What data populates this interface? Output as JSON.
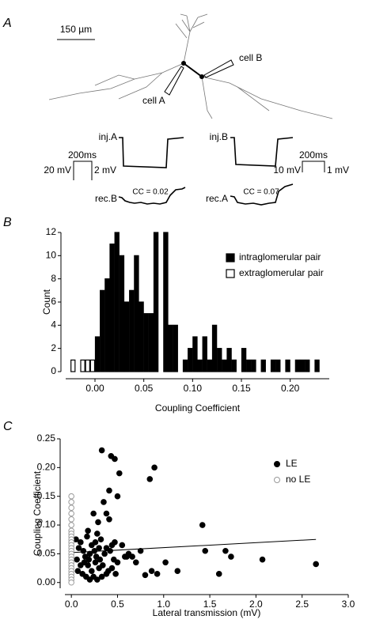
{
  "panel_a": {
    "label": "A",
    "scale_bar": "150 µm",
    "cell_a": "cell A",
    "cell_b": "cell B",
    "left": {
      "inj": "inj.A",
      "time": "200ms",
      "v_inj": "20 mV",
      "v_rec": "2 mV",
      "rec": "rec.B",
      "cc": "CC = 0.02"
    },
    "right": {
      "inj": "inj.B",
      "time": "200ms",
      "v_inj": "10 mV",
      "v_rec": "1 mV",
      "rec": "rec.A",
      "cc": "CC = 0.07"
    }
  },
  "chart_data": [
    {
      "type": "histogram",
      "panel_label": "B",
      "xlabel": "Coupling Coefficient",
      "ylabel": "Count",
      "legend": "upper right",
      "bins": [
        -0.025,
        -0.02,
        -0.015,
        -0.01,
        -0.005,
        0.0,
        0.005,
        0.01,
        0.015,
        0.02,
        0.025,
        0.03,
        0.035,
        0.04,
        0.045,
        0.05,
        0.055,
        0.06,
        0.065,
        0.07,
        0.075,
        0.08,
        0.085,
        0.09,
        0.095,
        0.1,
        0.105,
        0.11,
        0.115,
        0.12,
        0.125,
        0.13,
        0.135,
        0.14,
        0.145,
        0.15,
        0.155,
        0.16,
        0.165,
        0.17,
        0.175,
        0.18,
        0.185,
        0.19,
        0.195,
        0.2,
        0.205,
        0.21,
        0.215,
        0.22,
        0.225,
        0.23
      ],
      "series": [
        {
          "name": "intraglomerular pair",
          "color": "#000000",
          "edgecolor": "#000000",
          "values": [
            0,
            0,
            0,
            0,
            0,
            3,
            7,
            8,
            11,
            12,
            10,
            6,
            7,
            10,
            6,
            5,
            5,
            12,
            0,
            12,
            4,
            4,
            0,
            1,
            2,
            3,
            1,
            3,
            1,
            4,
            2,
            1,
            2,
            1,
            0,
            2,
            1,
            1,
            0,
            1,
            0,
            1,
            1,
            0,
            1,
            0,
            1,
            1,
            1,
            0,
            1
          ]
        },
        {
          "name": "extraglomerular pair",
          "color": "#ffffff",
          "edgecolor": "#000000",
          "values": [
            1,
            0,
            1,
            1,
            1,
            0,
            0,
            0,
            0,
            0,
            0,
            0,
            0,
            0,
            0,
            0,
            0,
            0,
            0,
            0,
            0,
            0,
            0,
            0,
            0,
            0,
            0,
            0,
            0,
            0,
            0,
            0,
            0,
            0,
            0,
            0,
            0,
            0,
            0,
            0,
            0,
            0,
            0,
            0,
            0,
            0,
            0,
            0,
            0,
            0,
            0
          ]
        }
      ],
      "xlim": [
        -0.03,
        0.24
      ],
      "ylim": [
        0,
        12
      ],
      "xticks": [
        {
          "value": 0,
          "label": "0.00"
        },
        {
          "value": 0.05,
          "label": "0.05"
        },
        {
          "value": 0.1,
          "label": "0.10"
        },
        {
          "value": 0.15,
          "label": "0.15"
        },
        {
          "value": 0.2,
          "label": "0.20"
        }
      ],
      "yticks": [
        0,
        2,
        4,
        6,
        8,
        10,
        12
      ]
    },
    {
      "type": "scatter",
      "panel_label": "C",
      "xlabel": "Lateral transmission (mV)",
      "ylabel": "Coupling Coefficient",
      "legend": "upper right",
      "series": [
        {
          "name": "LE",
          "color": "#000000",
          "marker": "filled",
          "x": [
            0.33,
            0.43,
            0.47,
            0.52,
            0.9,
            0.85,
            0.41,
            0.5,
            0.35,
            0.24,
            0.38,
            0.29,
            0.41,
            0.18,
            0.28,
            1.42,
            0.05,
            0.1,
            0.17,
            0.22,
            0.26,
            0.32,
            0.38,
            0.44,
            0.47,
            0.55,
            0.58,
            0.62,
            0.66,
            0.08,
            0.13,
            0.2,
            0.25,
            0.3,
            0.36,
            0.42,
            0.46,
            0.5,
            0.7,
            0.75,
            0.8,
            0.87,
            0.93,
            1.02,
            1.15,
            1.45,
            1.6,
            1.67,
            1.73,
            2.07,
            2.65,
            0.06,
            0.1,
            0.14,
            0.18,
            0.22,
            0.26,
            0.3,
            0.34,
            0.4,
            0.12,
            0.16,
            0.2,
            0.24,
            0.28,
            0.33,
            0.38,
            0.07,
            0.15,
            0.19,
            0.27,
            0.31,
            0.44,
            0.48,
            0.6
          ],
          "values": [
            0.23,
            0.22,
            0.215,
            0.19,
            0.2,
            0.18,
            0.16,
            0.15,
            0.14,
            0.12,
            0.12,
            0.105,
            0.11,
            0.09,
            0.085,
            0.1,
            0.075,
            0.07,
            0.08,
            0.065,
            0.07,
            0.075,
            0.06,
            0.065,
            0.07,
            0.065,
            0.045,
            0.05,
            0.045,
            0.06,
            0.055,
            0.05,
            0.055,
            0.06,
            0.05,
            0.055,
            0.04,
            0.035,
            0.035,
            0.055,
            0.013,
            0.02,
            0.015,
            0.035,
            0.02,
            0.055,
            0.015,
            0.055,
            0.045,
            0.04,
            0.032,
            0.04,
            0.03,
            0.035,
            0.03,
            0.02,
            0.035,
            0.025,
            0.03,
            0.02,
            0.015,
            0.01,
            0.005,
            0.01,
            0.005,
            0.01,
            0.015,
            0.02,
            0.045,
            0.04,
            0.045,
            0.04,
            0.025,
            0.015,
            0.045
          ]
        },
        {
          "name": "no LE",
          "color": "#999999",
          "marker": "open",
          "x": [
            0,
            0,
            0,
            0,
            0,
            0,
            0,
            0,
            0,
            0,
            0,
            0,
            0,
            0,
            0,
            0,
            0,
            0,
            0,
            0,
            0,
            0,
            0,
            0,
            0
          ],
          "values": [
            0.15,
            0.14,
            0.13,
            0.12,
            0.11,
            0.1,
            0.09,
            0.085,
            0.08,
            0.075,
            0.07,
            0.065,
            0.06,
            0.055,
            0.05,
            0.045,
            0.04,
            0.035,
            0.03,
            0.025,
            0.02,
            0.015,
            0.01,
            0.005,
            0
          ]
        }
      ],
      "fit": {
        "color": "#000000",
        "x": [
          0,
          2.65
        ],
        "y": [
          0.052,
          0.075
        ]
      },
      "xlim": [
        -0.07,
        3.0
      ],
      "ylim": [
        -0.01,
        0.25
      ],
      "xticks": [
        {
          "value": 0,
          "label": "0.0"
        },
        {
          "value": 0.5,
          "label": "0.5"
        },
        {
          "value": 1,
          "label": "1.0"
        },
        {
          "value": 1.5,
          "label": "1.5"
        },
        {
          "value": 2,
          "label": "2.0"
        },
        {
          "value": 2.5,
          "label": "2.5"
        },
        {
          "value": 3,
          "label": "3.0"
        }
      ],
      "yticks": [
        {
          "value": 0,
          "label": "0.00"
        },
        {
          "value": 0.05,
          "label": "0.05"
        },
        {
          "value": 0.1,
          "label": "0.10"
        },
        {
          "value": 0.15,
          "label": "0.15"
        },
        {
          "value": 0.2,
          "label": "0.20"
        },
        {
          "value": 0.25,
          "label": "0.25"
        }
      ]
    }
  ]
}
